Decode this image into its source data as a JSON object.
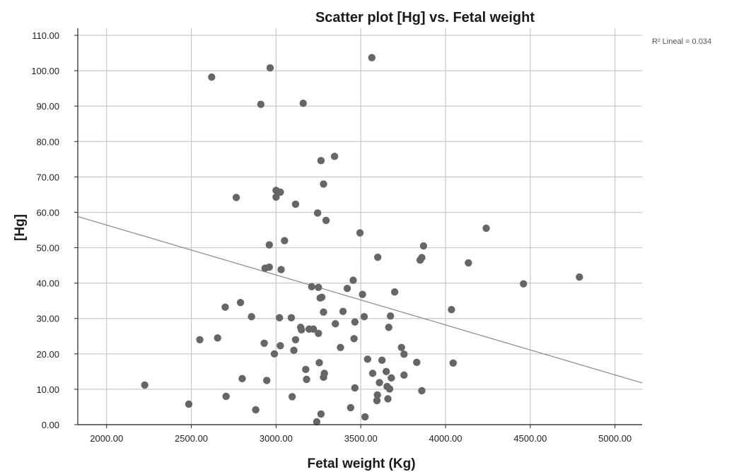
{
  "chart_data": {
    "type": "scatter",
    "title": "Scatter plot [Hg] vs. Fetal weight",
    "xlabel": "Fetal weight (Kg)",
    "ylabel": "[Hg]",
    "xlim": [
      1830,
      5160
    ],
    "ylim": [
      0,
      112
    ],
    "xticks": [
      2000,
      2500,
      3000,
      3500,
      4000,
      4500,
      5000
    ],
    "xtick_labels": [
      "2000.00",
      "2500.00",
      "3000.00",
      "3500.00",
      "4000.00",
      "4500.00",
      "5000.00"
    ],
    "yticks": [
      0,
      10,
      20,
      30,
      40,
      50,
      60,
      70,
      80,
      90,
      100,
      110
    ],
    "ytick_labels": [
      "0.00",
      "10.00",
      "20.00",
      "30.00",
      "40.00",
      "50.00",
      "60.00",
      "70.00",
      "80.00",
      "90.00",
      "100.00",
      "110.00"
    ],
    "grid": true,
    "fit_line": {
      "label": "R² Lineal = 0.034",
      "x": [
        1830,
        5160
      ],
      "y": [
        58.8,
        11.8
      ]
    },
    "colors": {
      "points": "#666666",
      "grid": "#c8c8c8",
      "fit_line": "#888888",
      "axis": "#222222"
    },
    "series": [
      {
        "points": [
          [
            2225,
            11.2
          ],
          [
            2485,
            5.8
          ],
          [
            2550,
            24
          ],
          [
            2620,
            98.2
          ],
          [
            2655,
            24.5
          ],
          [
            2700,
            33.2
          ],
          [
            2705,
            8
          ],
          [
            2765,
            64.2
          ],
          [
            2790,
            34.5
          ],
          [
            2800,
            13
          ],
          [
            2855,
            30.5
          ],
          [
            2880,
            4.2
          ],
          [
            2910,
            90.5
          ],
          [
            2930,
            23
          ],
          [
            2935,
            44.2
          ],
          [
            2945,
            12.5
          ],
          [
            2960,
            44.5
          ],
          [
            2960,
            50.8
          ],
          [
            2965,
            100.8
          ],
          [
            2990,
            20
          ],
          [
            3000,
            64.3
          ],
          [
            3000,
            66.2
          ],
          [
            3020,
            30.2
          ],
          [
            3025,
            65.7
          ],
          [
            3025,
            22.3
          ],
          [
            3030,
            43.8
          ],
          [
            3050,
            52
          ],
          [
            3090,
            30.2
          ],
          [
            3095,
            7.9
          ],
          [
            3105,
            21
          ],
          [
            3115,
            62.3
          ],
          [
            3115,
            24
          ],
          [
            3145,
            27.5
          ],
          [
            3150,
            26.8
          ],
          [
            3160,
            90.8
          ],
          [
            3175,
            15.6
          ],
          [
            3180,
            12.8
          ],
          [
            3195,
            27
          ],
          [
            3210,
            39
          ],
          [
            3220,
            27
          ],
          [
            3240,
            0.8
          ],
          [
            3245,
            59.8
          ],
          [
            3250,
            38.8
          ],
          [
            3250,
            25.8
          ],
          [
            3255,
            17.5
          ],
          [
            3260,
            35.8
          ],
          [
            3265,
            74.6
          ],
          [
            3265,
            3
          ],
          [
            3270,
            36
          ],
          [
            3280,
            68
          ],
          [
            3280,
            31.8
          ],
          [
            3280,
            13.4
          ],
          [
            3285,
            14.5
          ],
          [
            3295,
            57.7
          ],
          [
            3345,
            75.8
          ],
          [
            3350,
            28.5
          ],
          [
            3380,
            21.8
          ],
          [
            3395,
            32
          ],
          [
            3420,
            38.5
          ],
          [
            3440,
            4.8
          ],
          [
            3455,
            40.8
          ],
          [
            3460,
            24.3
          ],
          [
            3465,
            29
          ],
          [
            3465,
            10.4
          ],
          [
            3495,
            54.2
          ],
          [
            3510,
            36.8
          ],
          [
            3520,
            30.5
          ],
          [
            3525,
            2.2
          ],
          [
            3540,
            18.5
          ],
          [
            3565,
            103.7
          ],
          [
            3570,
            14.5
          ],
          [
            3595,
            6.8
          ],
          [
            3598,
            8.4
          ],
          [
            3600,
            47.3
          ],
          [
            3610,
            11.9
          ],
          [
            3625,
            18.2
          ],
          [
            3650,
            15
          ],
          [
            3655,
            10.8
          ],
          [
            3660,
            7.3
          ],
          [
            3665,
            27.5
          ],
          [
            3670,
            10.1
          ],
          [
            3675,
            30.7
          ],
          [
            3680,
            13.2
          ],
          [
            3700,
            37.5
          ],
          [
            3740,
            21.8
          ],
          [
            3755,
            14
          ],
          [
            3755,
            19.9
          ],
          [
            3830,
            17.6
          ],
          [
            3850,
            46.5
          ],
          [
            3860,
            47.2
          ],
          [
            3860,
            9.6
          ],
          [
            3870,
            50.5
          ],
          [
            4035,
            32.5
          ],
          [
            4045,
            17.4
          ],
          [
            4135,
            45.7
          ],
          [
            4240,
            55.5
          ],
          [
            4460,
            39.8
          ],
          [
            4790,
            41.7
          ]
        ]
      }
    ]
  }
}
